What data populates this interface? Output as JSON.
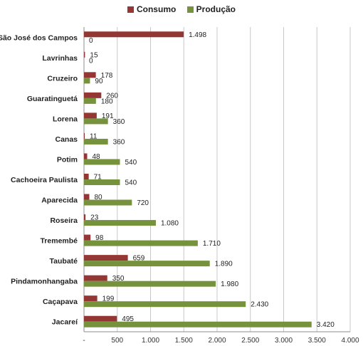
{
  "chart_data": {
    "type": "bar",
    "orientation": "horizontal",
    "categories": [
      "São José dos Campos",
      "Lavrinhas",
      "Cruzeiro",
      "Guaratinguetá",
      "Lorena",
      "Canas",
      "Potim",
      "Cachoeira Paulista",
      "Aparecida",
      "Roseira",
      "Tremembé",
      "Taubaté",
      "Pindamonhangaba",
      "Caçapava",
      "Jacareí"
    ],
    "series": [
      {
        "name": "Consumo",
        "color": "#943634",
        "values": [
          1498,
          15,
          178,
          260,
          191,
          11,
          48,
          71,
          80,
          23,
          98,
          659,
          350,
          199,
          495
        ],
        "labels": [
          "1.498",
          "15",
          "178",
          "260",
          "191",
          "11",
          "48",
          "71",
          "80",
          "23",
          "98",
          "659",
          "350",
          "199",
          "495"
        ]
      },
      {
        "name": "Produção",
        "color": "#76923c",
        "values": [
          0,
          0,
          90,
          180,
          360,
          360,
          540,
          540,
          720,
          1080,
          1710,
          1890,
          1980,
          2430,
          3420
        ],
        "labels": [
          "0",
          "0",
          "90",
          "180",
          "360",
          "360",
          "540",
          "540",
          "720",
          "1.080",
          "1.710",
          "1.890",
          "1.980",
          "2.430",
          "3.420"
        ]
      }
    ],
    "xlim": [
      0,
      4000
    ],
    "xticks": [
      0,
      500,
      1000,
      1500,
      2000,
      2500,
      3000,
      3500,
      4000
    ],
    "xtick_labels": [
      "-",
      "500",
      "1.000",
      "1.500",
      "2.000",
      "2.500",
      "3.000",
      "3.500",
      "4.000"
    ],
    "grid": true,
    "legend_position": "top-center"
  }
}
